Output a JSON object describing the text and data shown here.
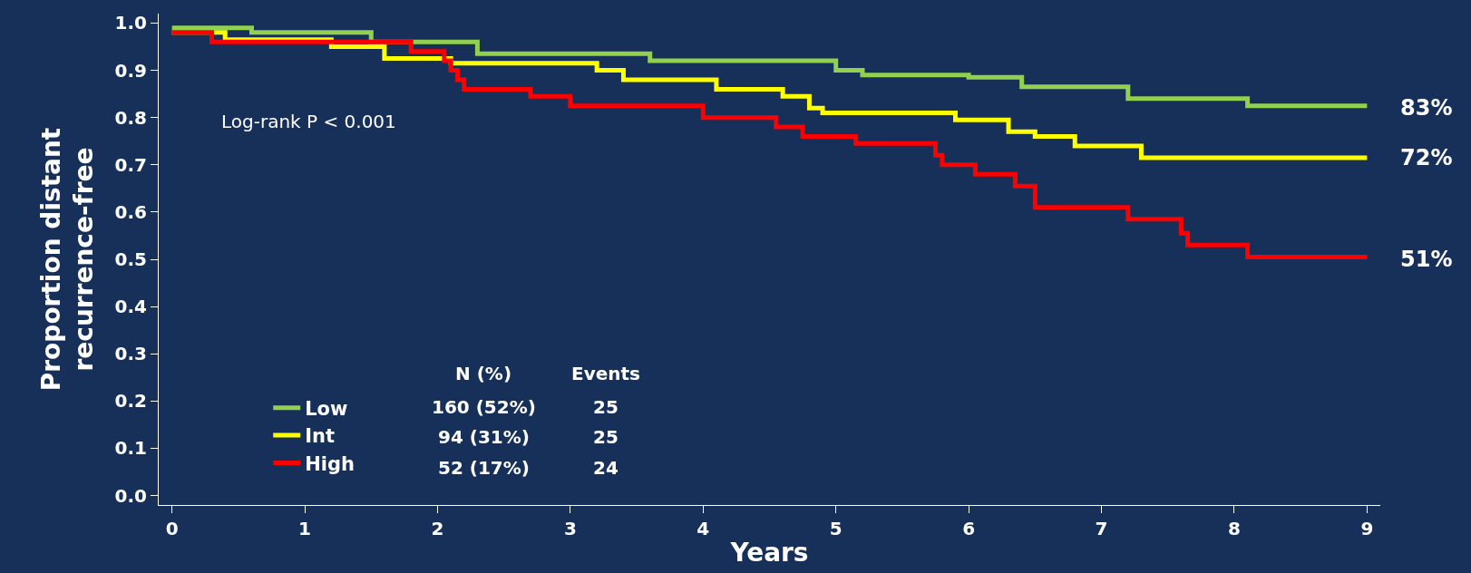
{
  "chart_data": {
    "type": "step",
    "xlabel": "Years",
    "ylabel": "Proportion distant\nrecurrence-free",
    "xlim": [
      -0.1,
      9.1
    ],
    "xticks": [
      0,
      1,
      2,
      3,
      4,
      5,
      6,
      7,
      8,
      9
    ],
    "ylim": [
      -0.02,
      1.02
    ],
    "yticks": [
      {
        "value": 0,
        "label": "0.0"
      },
      0.1,
      0.2,
      0.3,
      0.4,
      0.5,
      0.6,
      0.7,
      0.8,
      0.9,
      {
        "value": 1,
        "label": "1.0"
      }
    ],
    "grid": false,
    "legend": "bottom left",
    "marker": "none",
    "line_style": "solid",
    "series": [
      {
        "name": "Low",
        "color": "#92d050",
        "x": [
          0,
          0.6,
          1.5,
          2.3,
          3.6,
          5.0,
          5.2,
          6.0,
          6.4,
          7.2,
          8.1,
          9.0
        ],
        "values": [
          0.99,
          0.98,
          0.96,
          0.935,
          0.92,
          0.9,
          0.89,
          0.885,
          0.865,
          0.84,
          0.825,
          0.825
        ]
      },
      {
        "name": "Int",
        "color": "#ffff00",
        "x": [
          0,
          0.4,
          1.2,
          1.6,
          2.1,
          3.2,
          3.4,
          4.1,
          4.6,
          4.8,
          4.9,
          5.9,
          6.3,
          6.5,
          6.8,
          7.3,
          9.0
        ],
        "values": [
          0.98,
          0.965,
          0.95,
          0.925,
          0.915,
          0.9,
          0.88,
          0.86,
          0.845,
          0.82,
          0.81,
          0.795,
          0.77,
          0.76,
          0.74,
          0.715,
          0.715
        ]
      },
      {
        "name": "High",
        "color": "#ff0000",
        "x": [
          0,
          0.3,
          1.8,
          2.05,
          2.1,
          2.15,
          2.2,
          2.7,
          3.0,
          4.0,
          4.55,
          4.75,
          5.15,
          5.75,
          5.8,
          6.05,
          6.35,
          6.5,
          7.2,
          7.6,
          7.65,
          8.1,
          9.0
        ],
        "values": [
          0.98,
          0.96,
          0.94,
          0.92,
          0.9,
          0.88,
          0.86,
          0.845,
          0.825,
          0.8,
          0.78,
          0.76,
          0.745,
          0.72,
          0.7,
          0.68,
          0.655,
          0.61,
          0.585,
          0.555,
          0.53,
          0.505,
          0.505
        ]
      }
    ],
    "annotations": [
      "Log-rank P < 0.001",
      "N (%)",
      "Events",
      "160 (52%)",
      "25",
      "94 (31%)",
      "25",
      "52 (17%)",
      "24",
      "83%",
      "72%",
      "51%"
    ]
  }
}
